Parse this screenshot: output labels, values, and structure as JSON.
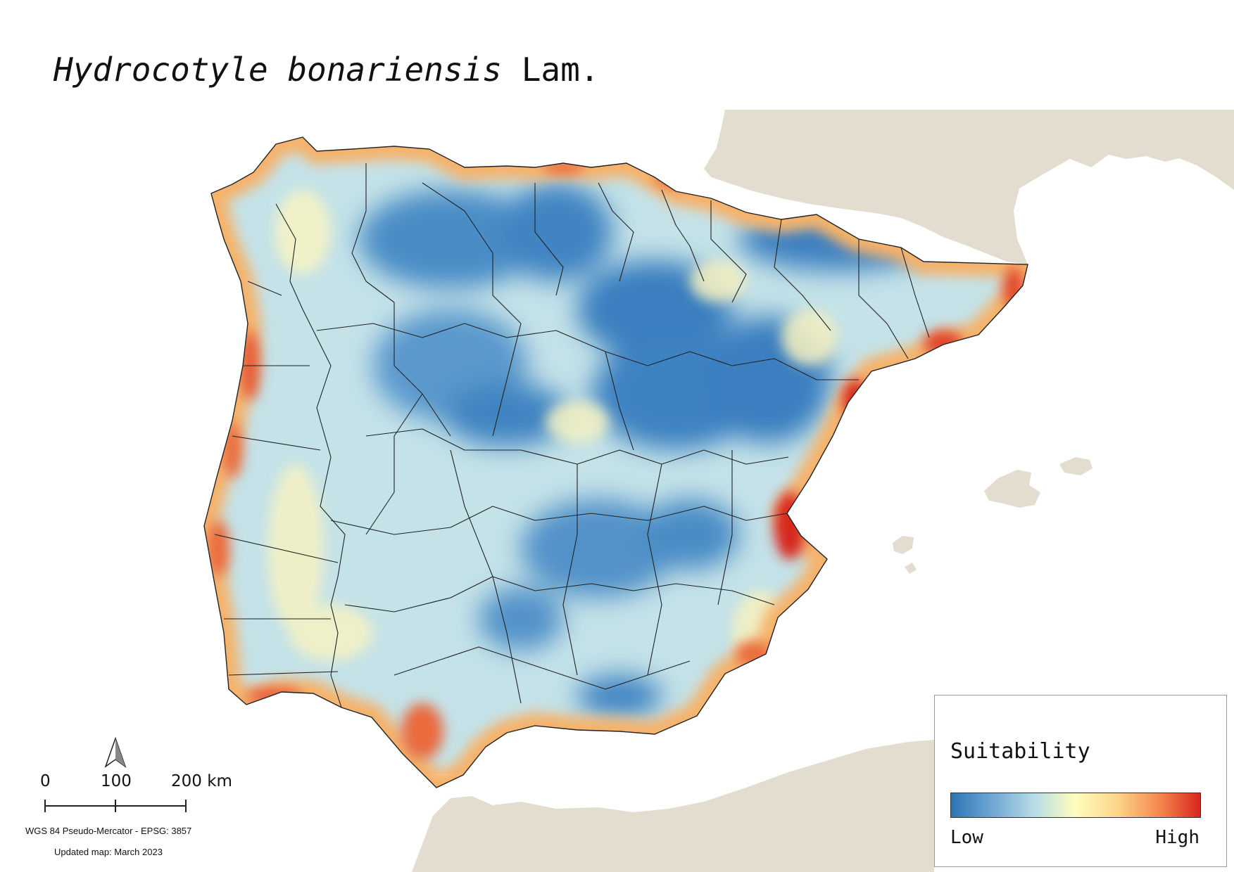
{
  "title": {
    "species": "Hydrocotyle bonariensis",
    "author": "Lam."
  },
  "legend": {
    "title": "Suitability",
    "low_label": "Low",
    "high_label": "High",
    "ramp_colors": [
      "#2c74b6",
      "#6fa7d4",
      "#b7dce6",
      "#fffdbd",
      "#fcd58a",
      "#f48a4f",
      "#d7261e"
    ]
  },
  "scale_bar": {
    "tick_0": "0",
    "tick_1": "100",
    "tick_2": "200 km"
  },
  "north_arrow": {
    "icon": "north-arrow-icon"
  },
  "crs_text": "WGS 84 Pseudo-Mercator  - EPSG: 3857",
  "updated_text": "Updated map: March 2023",
  "colors": {
    "land_outside": "#e3ddd0",
    "sea": "#ffffff",
    "boundary": "#222222"
  }
}
